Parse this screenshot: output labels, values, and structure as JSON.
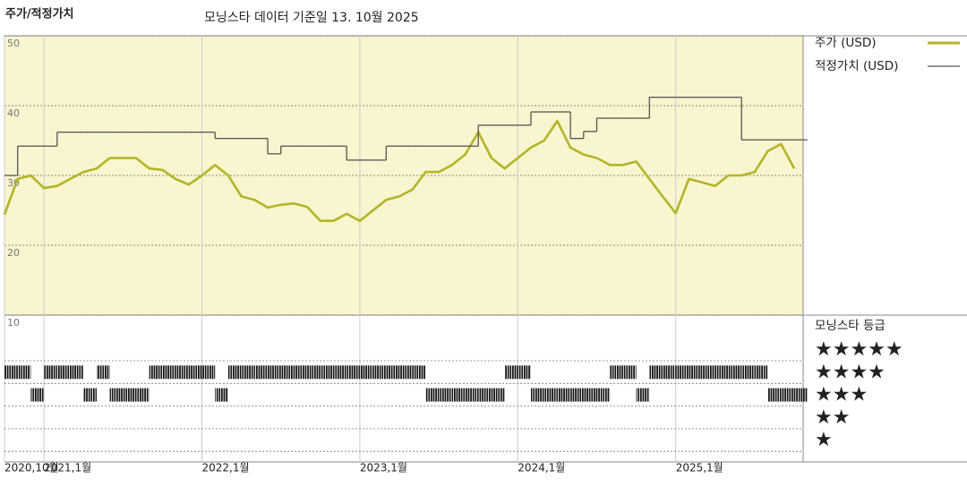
{
  "chart_data": [
    {
      "type": "line",
      "title": "주가/적정가치",
      "subtitle": "모닝스타 데이터 기준일 13. 10월 2025",
      "x": [
        "2020-10",
        "2020-11",
        "2020-12",
        "2021-01",
        "2021-02",
        "2021-03",
        "2021-04",
        "2021-05",
        "2021-06",
        "2021-07",
        "2021-08",
        "2021-09",
        "2021-10",
        "2021-11",
        "2021-12",
        "2022-01",
        "2022-02",
        "2022-03",
        "2022-04",
        "2022-05",
        "2022-06",
        "2022-07",
        "2022-08",
        "2022-09",
        "2022-10",
        "2022-11",
        "2022-12",
        "2023-01",
        "2023-02",
        "2023-03",
        "2023-04",
        "2023-05",
        "2023-06",
        "2023-07",
        "2023-08",
        "2023-09",
        "2023-10",
        "2023-11",
        "2023-12",
        "2024-01",
        "2024-02",
        "2024-03",
        "2024-04",
        "2024-05",
        "2024-06",
        "2024-07",
        "2024-08",
        "2024-09",
        "2024-10",
        "2024-11",
        "2024-12",
        "2025-01",
        "2025-02",
        "2025-03",
        "2025-04",
        "2025-05",
        "2025-06",
        "2025-07",
        "2025-08",
        "2025-09",
        "2025-10"
      ],
      "series": [
        {
          "name": "주가 (USD)",
          "color": "#b5b426",
          "values": [
            24.4,
            29.5,
            30,
            28.2,
            28.5,
            29.5,
            30.5,
            31,
            32.5,
            32.5,
            32.5,
            31,
            30.8,
            29.5,
            28.7,
            30,
            31.5,
            30,
            27,
            26.5,
            25.4,
            25.8,
            26,
            25.5,
            23.5,
            23.5,
            24.5,
            23.5,
            25,
            26.5,
            27,
            28,
            30.5,
            30.5,
            31.5,
            33,
            36.2,
            32.5,
            31,
            32.5,
            34,
            35,
            37.8,
            34,
            33,
            32.5,
            31.5,
            31.5,
            32,
            29.5,
            27,
            24.6,
            29.5,
            29,
            28.5,
            30,
            30,
            30.5,
            33.5,
            34.5,
            31
          ]
        },
        {
          "name": "적정가치 (USD)",
          "color": "#555555",
          "values": [
            30,
            34.2,
            34.2,
            34.2,
            36.2,
            36.2,
            36.2,
            36.2,
            36.2,
            36.2,
            36.2,
            36.2,
            36.2,
            36.2,
            36.2,
            36.2,
            35.3,
            35.3,
            35.3,
            35.3,
            33.1,
            34.2,
            34.2,
            34.2,
            34.2,
            34.2,
            32.2,
            32.2,
            32.2,
            34.2,
            34.2,
            34.2,
            34.2,
            34.2,
            34.2,
            34.2,
            37.2,
            37.2,
            37.2,
            37.2,
            39.1,
            39.1,
            39.1,
            35.3,
            36.3,
            38.2,
            38.2,
            38.2,
            38.2,
            41.2,
            41.2,
            41.2,
            41.2,
            41.2,
            41.2,
            41.2,
            35.1,
            35.1,
            35.1,
            35.1,
            35.1
          ]
        }
      ],
      "ylim": [
        10,
        50
      ],
      "yticks": [
        10,
        20,
        30,
        40,
        50
      ],
      "xticks": [
        {
          "value": "2020-10",
          "label": "2020,10월"
        },
        {
          "value": "2021-01",
          "label": "2021,1월"
        },
        {
          "value": "2022-01",
          "label": "2022,1월"
        },
        {
          "value": "2023-01",
          "label": "2023,1월"
        },
        {
          "value": "2024-01",
          "label": "2024,1월"
        },
        {
          "value": "2025-01",
          "label": "2025,1월"
        }
      ]
    },
    {
      "type": "rating",
      "title": "모닝스타 등급",
      "levels": [
        {
          "value": 5,
          "label": "★★★★★"
        },
        {
          "value": 4,
          "label": "★★★★"
        },
        {
          "value": 3,
          "label": "★★★"
        },
        {
          "value": 2,
          "label": "★★"
        },
        {
          "value": 1,
          "label": "★"
        }
      ],
      "values": [
        4,
        4,
        3,
        4,
        4,
        4,
        3,
        4,
        3,
        3,
        3,
        4,
        4,
        4,
        4,
        4,
        3,
        4,
        4,
        4,
        4,
        4,
        4,
        4,
        4,
        4,
        4,
        4,
        4,
        4,
        4,
        4,
        3,
        3,
        3,
        3,
        3,
        3,
        4,
        4,
        3,
        3,
        3,
        3,
        3,
        3,
        4,
        4,
        3,
        4,
        4,
        4,
        4,
        4,
        4,
        4,
        4,
        4,
        3,
        3,
        3
      ]
    }
  ]
}
